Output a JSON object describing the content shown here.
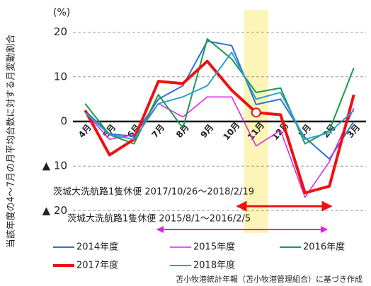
{
  "chart_data": {
    "type": "line",
    "ylabel": "当該年度の4～7月の月平均台数に対する月変動割合",
    "unit": "(%)",
    "categories": [
      "4月",
      "5月",
      "6月",
      "7月",
      "8月",
      "9月",
      "10月",
      "11月",
      "12月",
      "1月",
      "2月",
      "3月"
    ],
    "series": [
      {
        "name": "2014年度",
        "color": "#2f6fd6",
        "width": 2,
        "values": [
          2.4,
          -2.8,
          -3.3,
          5,
          8,
          18,
          17,
          3.8,
          5,
          -3.6,
          -8.4,
          0
        ]
      },
      {
        "name": "2015年度",
        "color": "#e020e0",
        "width": 1.5,
        "values": [
          2,
          -4,
          -3,
          4,
          1,
          5.5,
          5.5,
          -5.5,
          -2,
          -17,
          -9,
          3
        ]
      },
      {
        "name": "2016年度",
        "color": "#1a9a50",
        "width": 2,
        "values": [
          4,
          -3,
          -5,
          6,
          -1.5,
          18.5,
          14,
          6.5,
          7.5,
          -5,
          -2,
          12
        ]
      },
      {
        "name": "2017年度",
        "color": "#ee1111",
        "width": 4,
        "values": [
          2.5,
          -7.5,
          -4,
          9,
          8.5,
          13.5,
          7,
          2,
          1.5,
          -16,
          -14.5,
          6
        ]
      },
      {
        "name": "2018年度",
        "color": "#2aa0d0",
        "width": 2,
        "values": [
          2,
          -3,
          -4,
          4,
          5.5,
          8,
          15.5,
          5,
          6.5,
          -4,
          -2.5,
          2.5
        ]
      }
    ],
    "ylim": [
      -25,
      25
    ],
    "yticks": [
      20,
      10,
      0,
      {
        "value": -10,
        "label": "▲ 10"
      },
      {
        "value": -20,
        "label": "▲ 20"
      }
    ],
    "grid": true,
    "highlight": 7,
    "marker_series": 3,
    "marker_index": 7,
    "annotations": [
      "茨城大洗航路1隻休便 2017/10/26～2018/2/19",
      "茨城大洗航路1隻休便 2015/8/1～2016/2/5"
    ],
    "source": "苫小牧港統計年報（苫小牧港管理組合）に基づき作成"
  }
}
